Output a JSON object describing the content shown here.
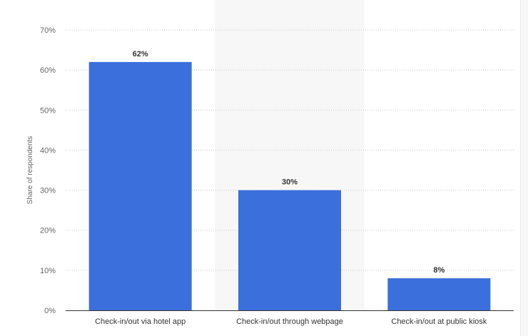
{
  "chart_data": {
    "type": "bar",
    "categories": [
      "Check-in/out via hotel app",
      "Check-in/out through webpage",
      "Check-in/out at public kiosk"
    ],
    "values": [
      62,
      30,
      8
    ],
    "data_labels": [
      "62%",
      "30%",
      "8%"
    ],
    "title": "",
    "xlabel": "",
    "ylabel": "Share of respondents",
    "ylim": [
      0,
      70
    ],
    "yticks": [
      "0%",
      "10%",
      "20%",
      "30%",
      "40%",
      "50%",
      "60%",
      "70%"
    ],
    "grid": true,
    "highlighted_category_index": 1,
    "colors": {
      "bar": "#3a6fdc",
      "grid": "#c8c8c8",
      "highlight": "#f7f7f7"
    }
  }
}
